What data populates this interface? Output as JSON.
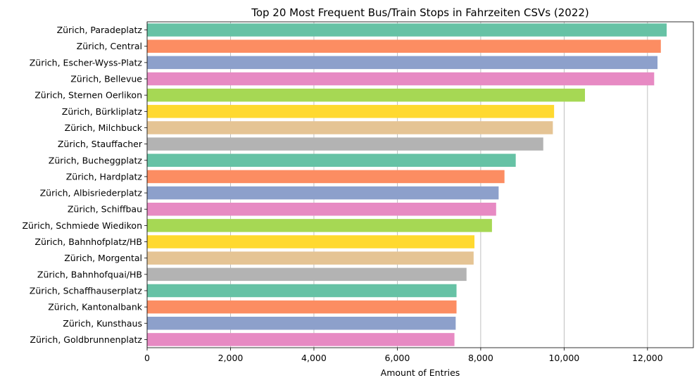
{
  "chart_data": {
    "type": "bar",
    "orientation": "horizontal",
    "title": "Top 20 Most Frequent Bus/Train Stops in Fahrzeiten CSVs (2022)",
    "xlabel": "Amount of Entries",
    "ylabel": "",
    "xlim": [
      0,
      13100
    ],
    "xticks": [
      0,
      2000,
      4000,
      6000,
      8000,
      10000,
      12000
    ],
    "xtick_labels": [
      "0",
      "2,000",
      "4,000",
      "6,000",
      "8,000",
      "10,000",
      "12,000"
    ],
    "grid": "x",
    "legend": "none",
    "categories": [
      "Zürich, Paradeplatz",
      "Zürich, Central",
      "Zürich, Escher-Wyss-Platz",
      "Zürich, Bellevue",
      "Zürich, Sternen Oerlikon",
      "Zürich, Bürkliplatz",
      "Zürich, Milchbuck",
      "Zürich, Stauffacher",
      "Zürich, Bucheggplatz",
      "Zürich, Hardplatz",
      "Zürich, Albisriederplatz",
      "Zürich, Schiffbau",
      "Zürich, Schmiede Wiedikon",
      "Zürich, Bahnhofplatz/HB",
      "Zürich, Morgental",
      "Zürich, Bahnhofquai/HB",
      "Zürich, Schaffhauserplatz",
      "Zürich, Kantonalbank",
      "Zürich, Kunsthaus",
      "Zürich, Goldbrunnenplatz"
    ],
    "values": [
      12460,
      12320,
      12240,
      12160,
      10500,
      9760,
      9730,
      9500,
      8840,
      8570,
      8430,
      8370,
      8270,
      7850,
      7830,
      7660,
      7420,
      7420,
      7400,
      7370
    ],
    "colors": [
      "#66c2a5",
      "#fc8d62",
      "#8da0cb",
      "#e78ac3",
      "#a6d854",
      "#ffd92f",
      "#e5c494",
      "#b3b3b3"
    ]
  }
}
